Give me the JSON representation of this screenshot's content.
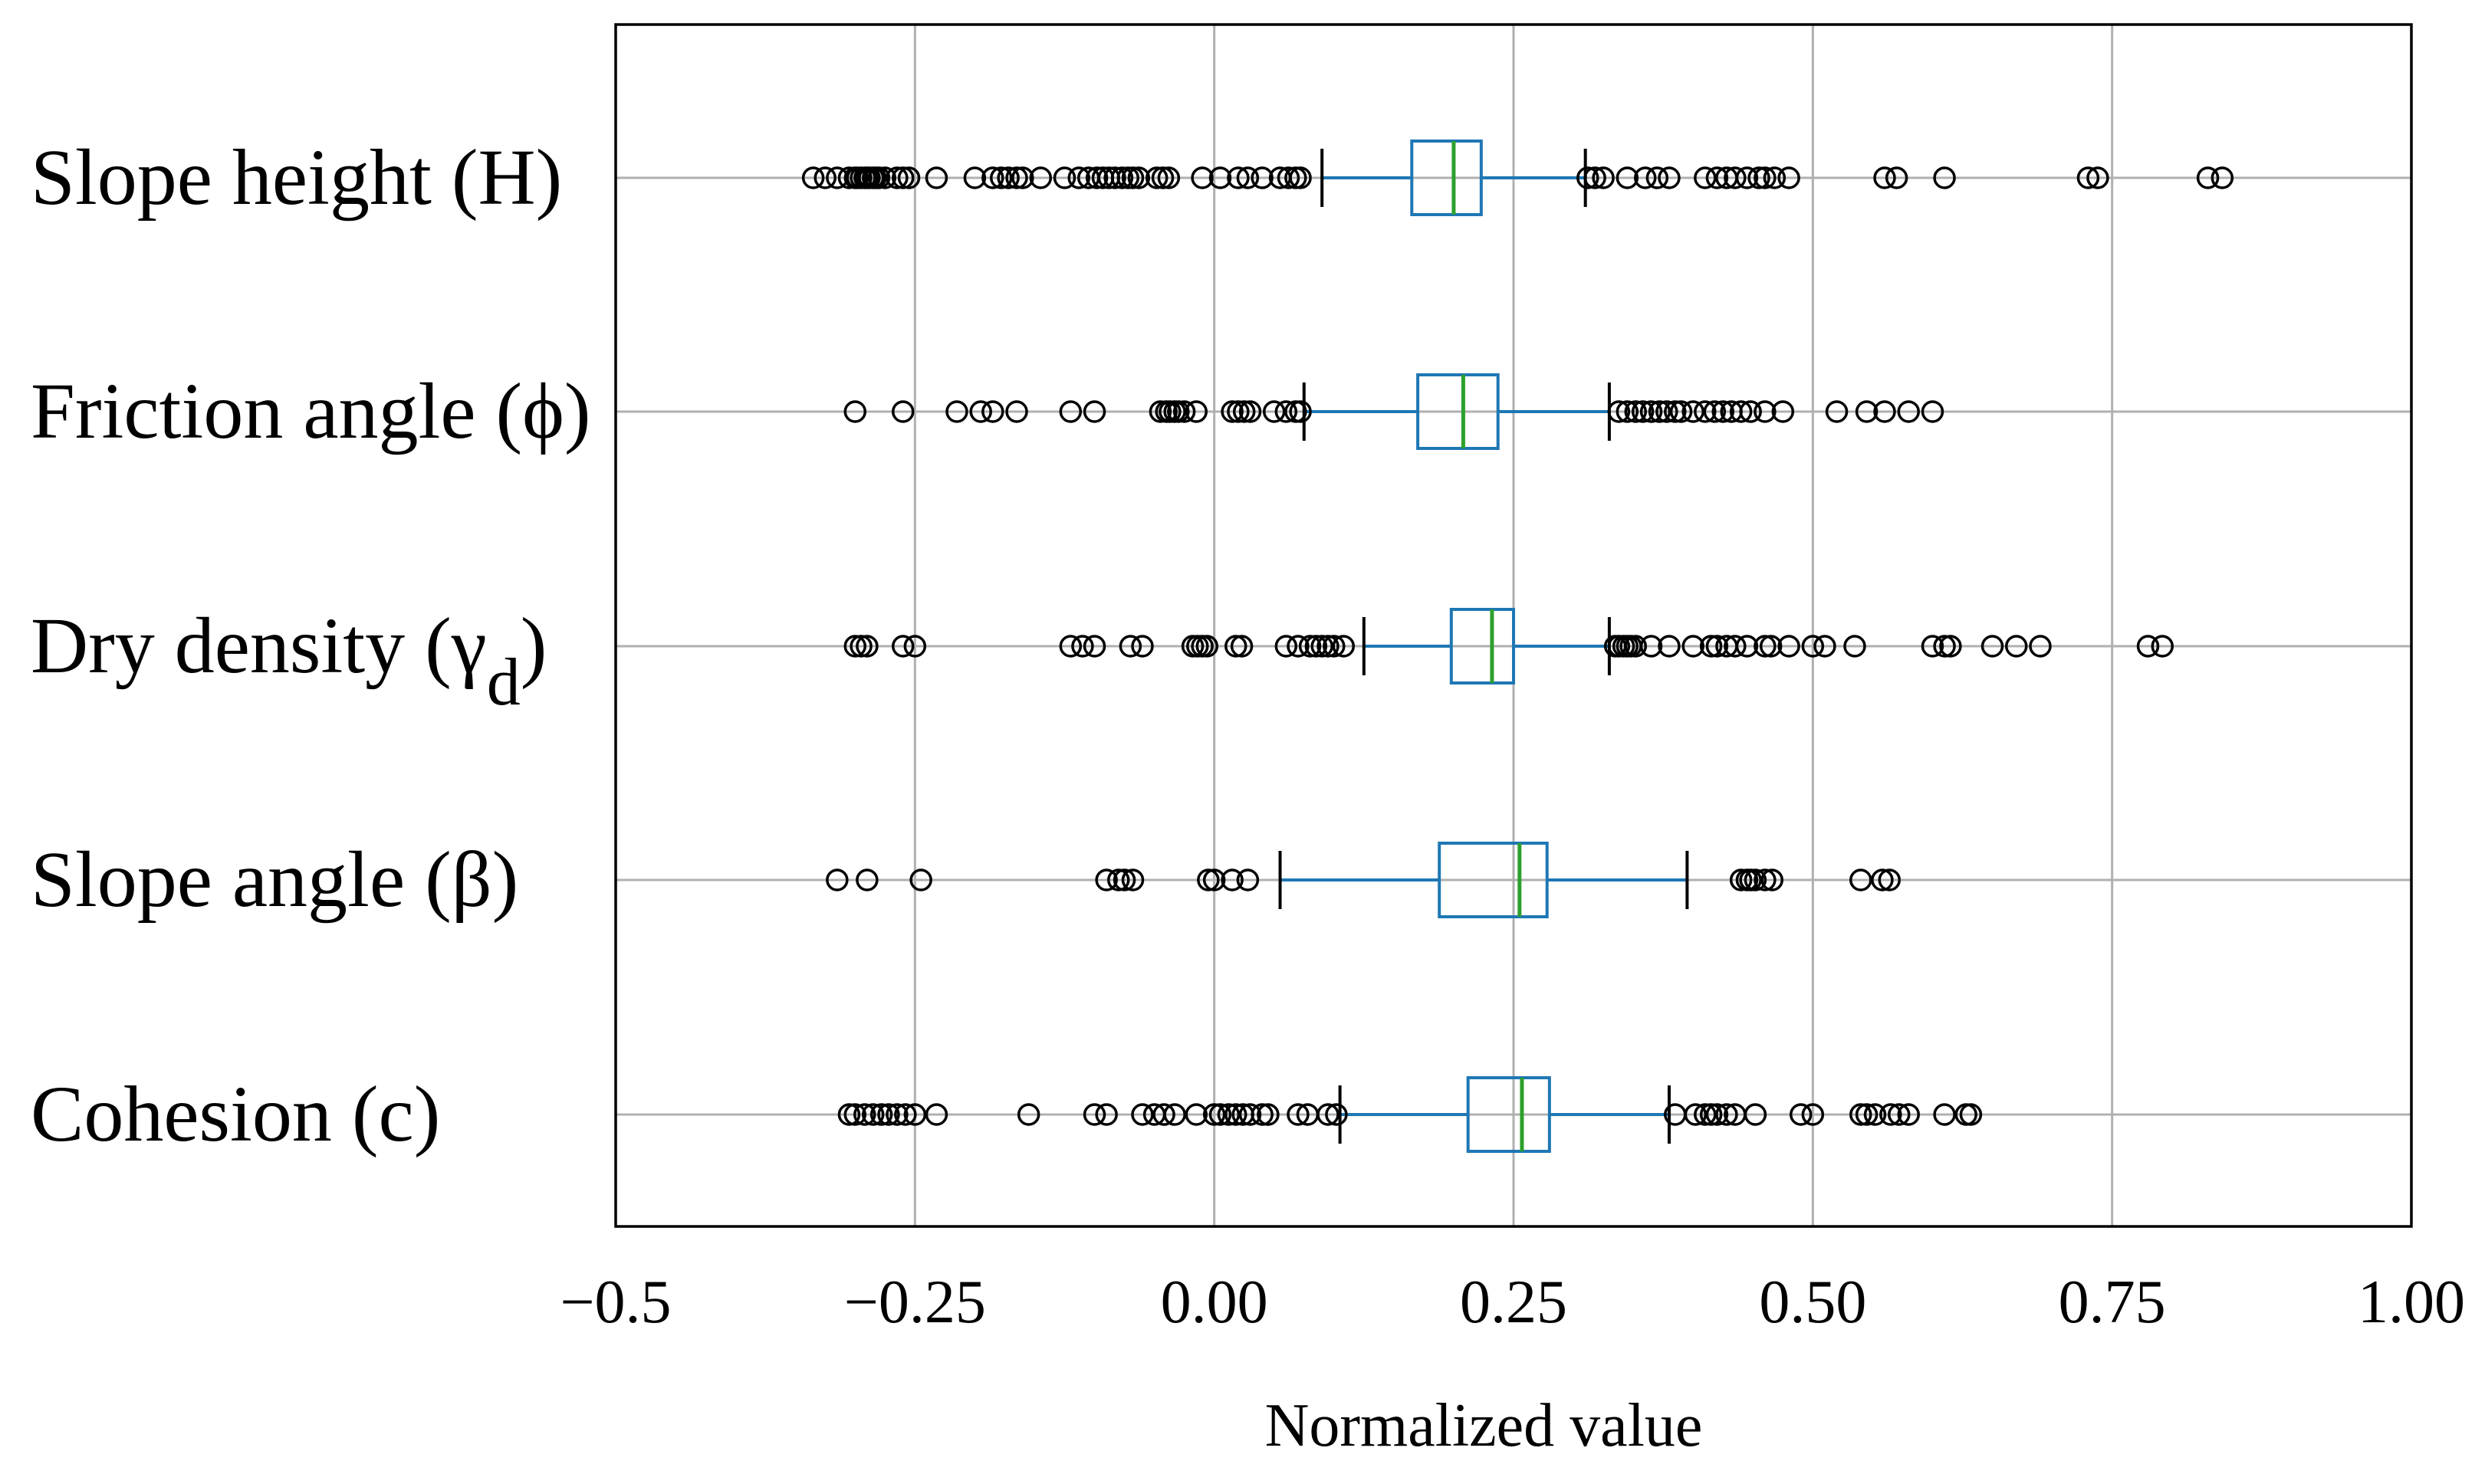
{
  "chart_data": {
    "type": "boxplot",
    "orientation": "horizontal",
    "title": "",
    "xlabel": "Normalized value",
    "ylabel": "",
    "xlim": [
      -0.5,
      1.0
    ],
    "xticks": [
      -0.5,
      -0.25,
      0.0,
      0.25,
      0.5,
      0.75,
      1.0
    ],
    "xtick_labels": [
      "−0.5",
      "−0.25",
      "0.00",
      "0.25",
      "0.50",
      "0.75",
      "1.00"
    ],
    "grid": true,
    "colors": {
      "box": "#1f77b4",
      "median": "#2ca02c",
      "flier": "#000000",
      "grid": "#b0b0b0"
    },
    "series": [
      {
        "name": "Slope height (H)",
        "label_main": "Slope height (H)",
        "label_sub": "",
        "label_end": "",
        "whisker_low": 0.09,
        "q1": 0.165,
        "median": 0.2,
        "q3": 0.223,
        "whisker_high": 0.31,
        "fliers": [
          -0.335,
          -0.325,
          -0.315,
          -0.305,
          -0.3,
          -0.298,
          -0.295,
          -0.292,
          -0.29,
          -0.288,
          -0.285,
          -0.283,
          -0.28,
          -0.275,
          -0.265,
          -0.26,
          -0.255,
          -0.232,
          -0.2,
          -0.185,
          -0.178,
          -0.172,
          -0.165,
          -0.16,
          -0.145,
          -0.125,
          -0.113,
          -0.105,
          -0.098,
          -0.093,
          -0.088,
          -0.083,
          -0.077,
          -0.072,
          -0.068,
          -0.063,
          -0.048,
          -0.043,
          -0.038,
          -0.01,
          0.005,
          0.02,
          0.028,
          0.04,
          0.055,
          0.062,
          0.068,
          0.072,
          0.312,
          0.318,
          0.325,
          0.345,
          0.36,
          0.37,
          0.38,
          0.41,
          0.42,
          0.428,
          0.435,
          0.445,
          0.455,
          0.46,
          0.468,
          0.48,
          0.56,
          0.57,
          0.61,
          0.73,
          0.738,
          0.83,
          0.842
        ]
      },
      {
        "name": "Friction angle (ϕ)",
        "label_main": "Friction angle (ϕ)",
        "label_sub": "",
        "label_end": "",
        "whisker_low": 0.075,
        "q1": 0.17,
        "median": 0.208,
        "q3": 0.237,
        "whisker_high": 0.33,
        "fliers": [
          -0.3,
          -0.26,
          -0.215,
          -0.195,
          -0.185,
          -0.165,
          -0.12,
          -0.1,
          -0.045,
          -0.04,
          -0.037,
          -0.033,
          -0.03,
          -0.025,
          -0.015,
          0.015,
          0.02,
          0.025,
          0.03,
          0.05,
          0.06,
          0.068,
          0.072,
          0.338,
          0.345,
          0.352,
          0.358,
          0.365,
          0.372,
          0.378,
          0.385,
          0.39,
          0.4,
          0.41,
          0.418,
          0.425,
          0.432,
          0.44,
          0.448,
          0.46,
          0.475,
          0.52,
          0.545,
          0.56,
          0.58,
          0.6
        ]
      },
      {
        "name": "Dry density (γd)",
        "label_main": "Dry density (γ",
        "label_sub": "d",
        "label_end": ")",
        "whisker_low": 0.125,
        "q1": 0.198,
        "median": 0.232,
        "q3": 0.25,
        "whisker_high": 0.33,
        "fliers": [
          -0.3,
          -0.295,
          -0.29,
          -0.26,
          -0.25,
          -0.12,
          -0.11,
          -0.1,
          -0.07,
          -0.06,
          -0.018,
          -0.014,
          -0.01,
          -0.006,
          0.018,
          0.023,
          0.06,
          0.07,
          0.08,
          0.085,
          0.09,
          0.095,
          0.1,
          0.108,
          0.335,
          0.338,
          0.342,
          0.345,
          0.348,
          0.352,
          0.365,
          0.38,
          0.4,
          0.415,
          0.42,
          0.428,
          0.435,
          0.445,
          0.46,
          0.465,
          0.48,
          0.5,
          0.51,
          0.535,
          0.6,
          0.61,
          0.615,
          0.65,
          0.67,
          0.69,
          0.78,
          0.792
        ]
      },
      {
        "name": "Slope angle (β)",
        "label_main": "Slope angle (β)",
        "label_sub": "",
        "label_end": "",
        "whisker_low": 0.055,
        "q1": 0.188,
        "median": 0.255,
        "q3": 0.278,
        "whisker_high": 0.395,
        "fliers": [
          -0.315,
          -0.29,
          -0.245,
          -0.09,
          -0.08,
          -0.075,
          -0.068,
          -0.005,
          0.0,
          0.015,
          0.028,
          0.44,
          0.445,
          0.448,
          0.452,
          0.46,
          0.466,
          0.54,
          0.558,
          0.564
        ]
      },
      {
        "name": "Cohesion (c)",
        "label_main": "Cohesion (c)",
        "label_sub": "",
        "label_end": "",
        "whisker_low": 0.105,
        "q1": 0.212,
        "median": 0.257,
        "q3": 0.28,
        "whisker_high": 0.38,
        "fliers": [
          -0.305,
          -0.3,
          -0.292,
          -0.285,
          -0.278,
          -0.272,
          -0.265,
          -0.258,
          -0.25,
          -0.232,
          -0.155,
          -0.1,
          -0.09,
          -0.06,
          -0.05,
          -0.042,
          -0.033,
          -0.015,
          0.0,
          0.005,
          0.012,
          0.018,
          0.024,
          0.03,
          0.04,
          0.045,
          0.07,
          0.078,
          0.095,
          0.102,
          0.385,
          0.402,
          0.41,
          0.415,
          0.42,
          0.428,
          0.435,
          0.452,
          0.49,
          0.5,
          0.54,
          0.545,
          0.552,
          0.565,
          0.572,
          0.58,
          0.61,
          0.628,
          0.632
        ]
      }
    ]
  }
}
